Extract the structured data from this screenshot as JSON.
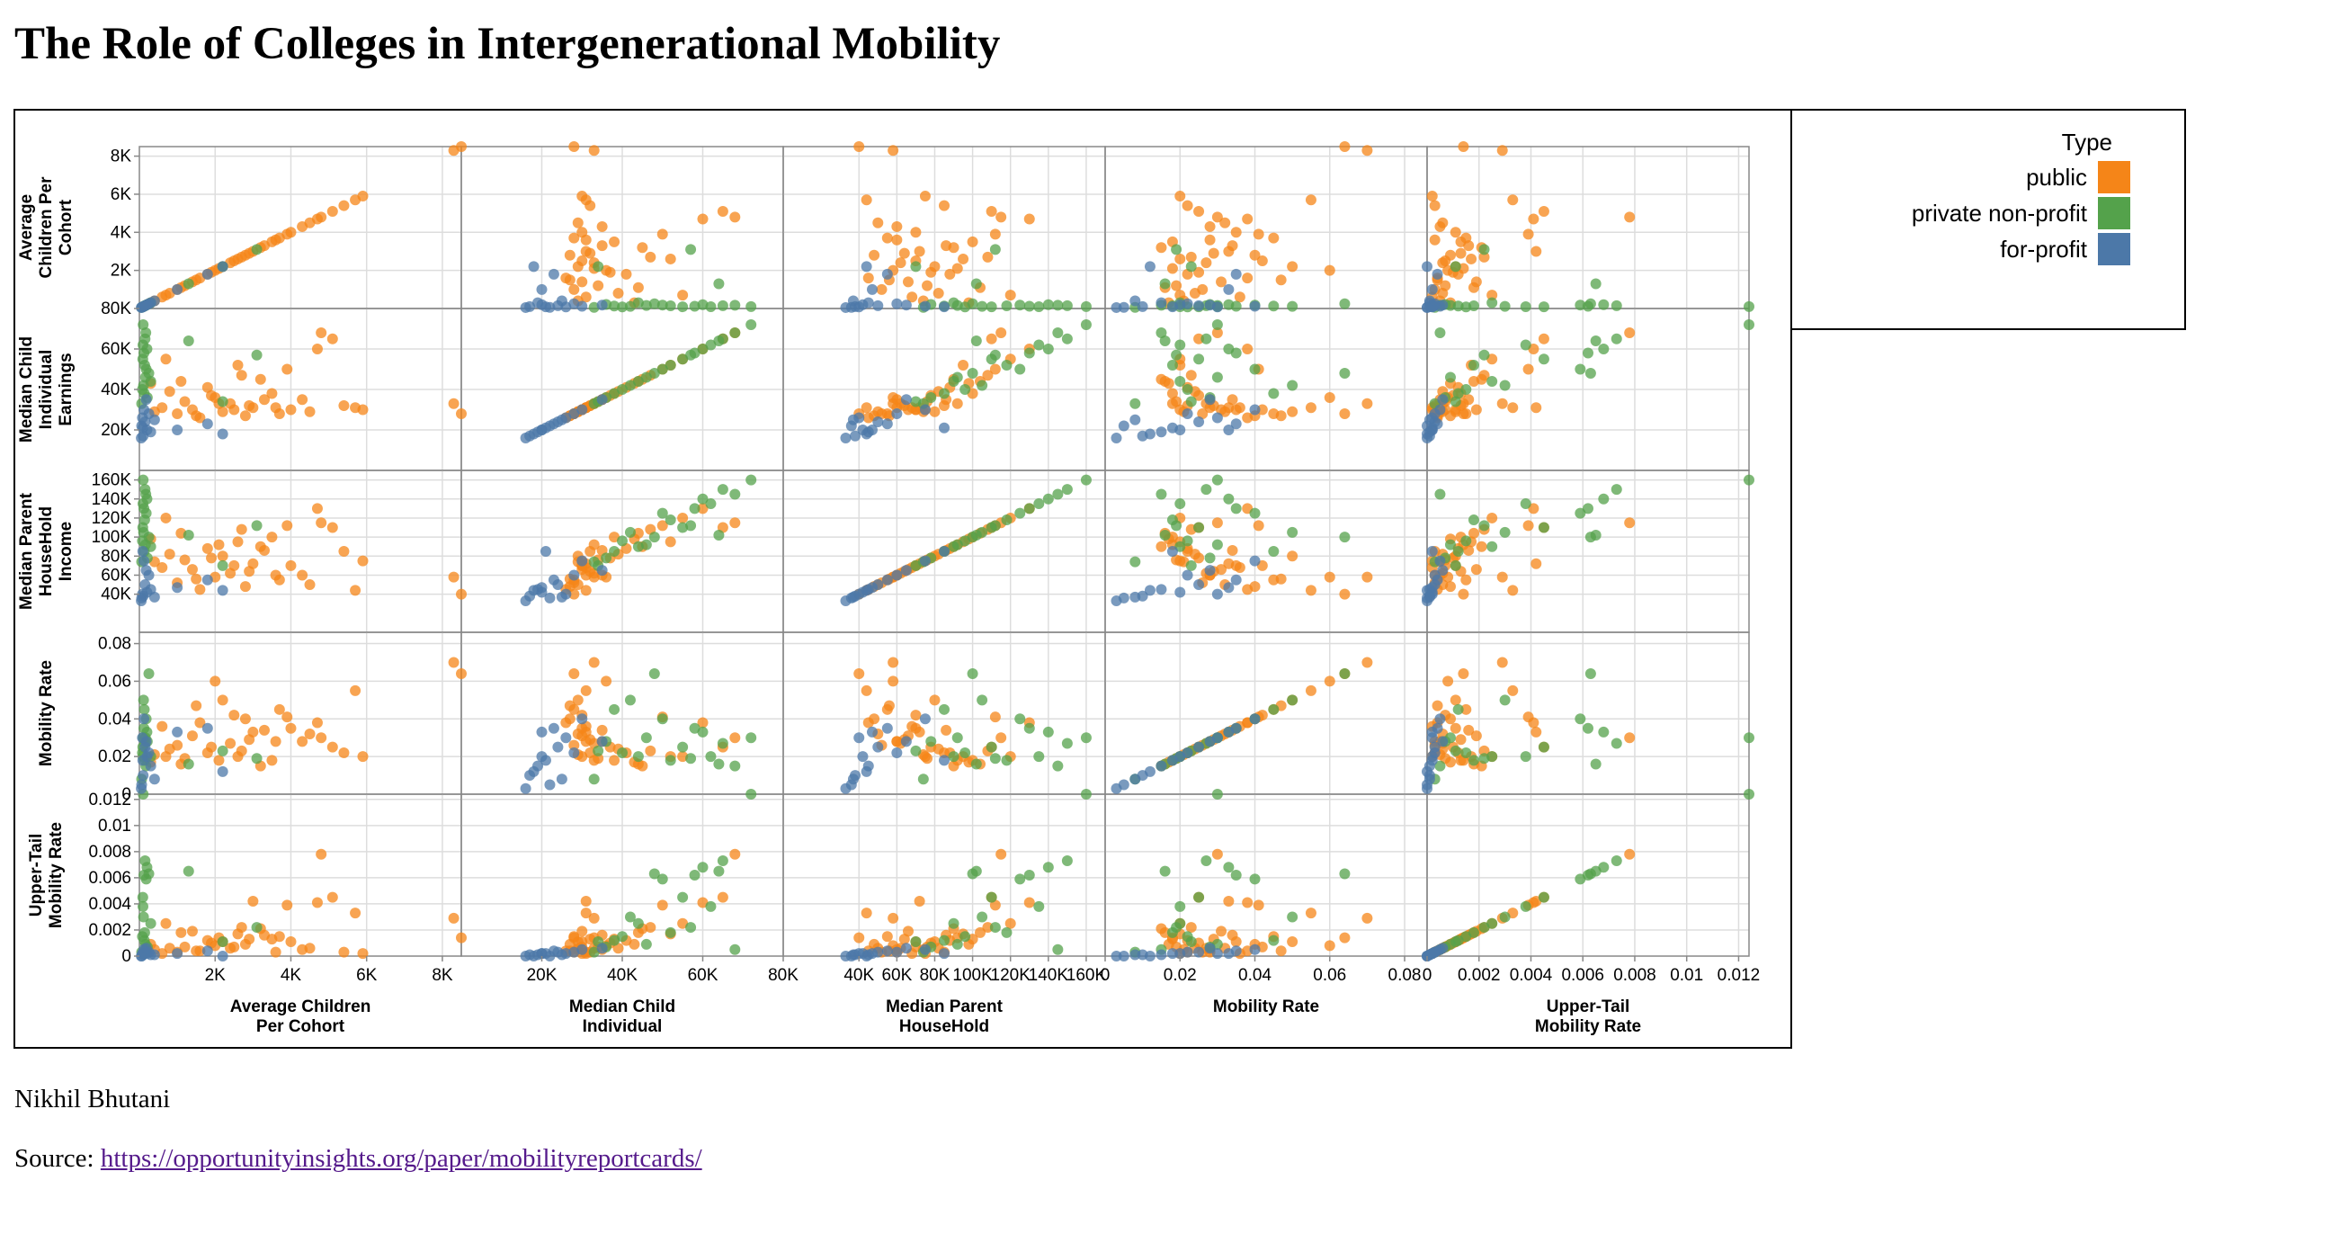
{
  "title": "The Role of Colleges in Intergenerational Mobility",
  "author": "Nikhil Bhutani",
  "source_label": "Source:",
  "source_url": "https://opportunityinsights.org/paper/mobilityreportcards/",
  "legend": {
    "title": "Type",
    "items": [
      {
        "label": "public",
        "color": "#f58518"
      },
      {
        "label": "private non-profit",
        "color": "#54a24b"
      },
      {
        "label": "for-profit",
        "color": "#4c78a8"
      }
    ]
  },
  "chart_data": {
    "type": "scatter",
    "subtype": "scatter-matrix",
    "grid": true,
    "legend_position": "right",
    "variables": [
      {
        "key": "count",
        "row_title": "Average Children Per Cohort",
        "col_title": "Average Children Per Cohort",
        "domain": [
          0,
          8500
        ],
        "ticks": [
          2000,
          4000,
          6000,
          8000
        ],
        "tick_labels": [
          "2K",
          "4K",
          "6K",
          "8K"
        ]
      },
      {
        "key": "k_median",
        "row_title": "Median Child Individual Earnings",
        "col_title": "Median Child Individual",
        "domain": [
          0,
          80000
        ],
        "ticks": [
          20000,
          40000,
          60000,
          80000
        ],
        "tick_labels": [
          "20K",
          "40K",
          "60K",
          "80K"
        ]
      },
      {
        "key": "par_median",
        "row_title": "Median Parent HouseHold Income",
        "col_title": "Median Parent HouseHold",
        "domain": [
          0,
          170000
        ],
        "ticks": [
          40000,
          60000,
          80000,
          100000,
          120000,
          140000,
          160000
        ],
        "tick_labels": [
          "40K",
          "60K",
          "80K",
          "100K",
          "120K",
          "140K",
          "160K"
        ]
      },
      {
        "key": "mr_kq5_pq1",
        "row_title": "Mobility Rate",
        "col_title": "Mobility Rate",
        "domain": [
          0,
          0.086
        ],
        "ticks": [
          0,
          0.02,
          0.04,
          0.06,
          0.08
        ],
        "tick_labels": [
          "0",
          "0.02",
          "0.04",
          "0.06",
          "0.08"
        ]
      },
      {
        "key": "mr_ktop1_pq1",
        "row_title": "Upper-Tail Mobility Rate",
        "col_title": "Upper-Tail Mobility Rate",
        "domain": [
          0,
          0.0124
        ],
        "ticks": [
          0,
          0.002,
          0.004,
          0.006,
          0.008,
          0.01,
          0.012
        ],
        "tick_labels": [
          "0",
          "0.002",
          "0.004",
          "0.006",
          "0.008",
          "0.01",
          "0.012"
        ]
      }
    ],
    "series": [
      {
        "name": "public",
        "color": "#f58518",
        "points": [
          [
            5900,
            30000,
            75000,
            0.02,
            0.0002
          ],
          [
            5400,
            32000,
            85000,
            0.022,
            0.0003
          ],
          [
            5100,
            65000,
            110000,
            0.025,
            0.0045
          ],
          [
            4800,
            68000,
            115000,
            0.03,
            0.0078
          ],
          [
            4300,
            35000,
            60000,
            0.028,
            0.0005
          ],
          [
            4000,
            30000,
            70000,
            0.035,
            0.0011
          ],
          [
            3700,
            28000,
            55000,
            0.045,
            0.0015
          ],
          [
            3500,
            38000,
            100000,
            0.018,
            0.0013
          ],
          [
            3200,
            45000,
            90000,
            0.015,
            0.0021
          ],
          [
            3000,
            31000,
            72000,
            0.033,
            0.0042
          ],
          [
            2800,
            27000,
            48000,
            0.04,
            0.0009
          ],
          [
            2600,
            52000,
            95000,
            0.02,
            0.0017
          ],
          [
            2400,
            33000,
            62000,
            0.027,
            0.0006
          ],
          [
            2200,
            29000,
            80000,
            0.05,
            0.0011
          ],
          [
            2000,
            36000,
            58000,
            0.06,
            0.0008
          ],
          [
            1800,
            41000,
            88000,
            0.022,
            0.0012
          ],
          [
            1600,
            26000,
            45000,
            0.038,
            0.0004
          ],
          [
            1400,
            30000,
            66000,
            0.031,
            0.0019
          ],
          [
            1200,
            34000,
            76000,
            0.019,
            0.0007
          ],
          [
            1000,
            28000,
            52000,
            0.026,
            0.0003
          ],
          [
            800,
            39000,
            82000,
            0.024,
            0.0006
          ],
          [
            600,
            31000,
            68000,
            0.036,
            0.0002
          ],
          [
            400,
            29000,
            74000,
            0.021,
            0.0005
          ],
          [
            300,
            43000,
            98000,
            0.017,
            0.0009
          ],
          [
            2900,
            32000,
            64000,
            0.029,
            0.0013
          ],
          [
            3300,
            35000,
            86000,
            0.034,
            0.0016
          ],
          [
            2500,
            30000,
            70000,
            0.042,
            0.0007
          ],
          [
            1900,
            37000,
            78000,
            0.025,
            0.001
          ],
          [
            1500,
            27000,
            56000,
            0.047,
            0.0004
          ],
          [
            2100,
            33000,
            92000,
            0.018,
            0.0014
          ],
          [
            3600,
            31000,
            60000,
            0.028,
            0.0003
          ],
          [
            4500,
            29000,
            50000,
            0.032,
            0.0006
          ],
          [
            1100,
            44000,
            104000,
            0.016,
            0.0018
          ],
          [
            700,
            55000,
            120000,
            0.02,
            0.0025
          ],
          [
            2700,
            47000,
            108000,
            0.023,
            0.0022
          ],
          [
            8500,
            28000,
            40000,
            0.064,
            0.0014
          ],
          [
            8300,
            33000,
            58000,
            0.07,
            0.0029
          ],
          [
            5700,
            31000,
            44000,
            0.055,
            0.0033
          ],
          [
            4700,
            60000,
            130000,
            0.038,
            0.0041
          ],
          [
            3900,
            50000,
            112000,
            0.041,
            0.0039
          ]
        ]
      },
      {
        "name": "private non-profit",
        "color": "#54a24b",
        "points": [
          [
            100,
            72000,
            160000,
            0.03,
            0.0124
          ],
          [
            150,
            65000,
            150000,
            0.027,
            0.0073
          ],
          [
            200,
            60000,
            140000,
            0.033,
            0.0068
          ],
          [
            120,
            58000,
            130000,
            0.035,
            0.0062
          ],
          [
            180,
            50000,
            125000,
            0.04,
            0.0059
          ],
          [
            90,
            55000,
            110000,
            0.025,
            0.0045
          ],
          [
            250,
            48000,
            100000,
            0.064,
            0.0063
          ],
          [
            300,
            44000,
            90000,
            0.02,
            0.0025
          ],
          [
            110,
            42000,
            105000,
            0.05,
            0.003
          ],
          [
            140,
            52000,
            118000,
            0.018,
            0.0018
          ],
          [
            80,
            40000,
            96000,
            0.022,
            0.0015
          ],
          [
            130,
            38000,
            85000,
            0.045,
            0.0012
          ],
          [
            160,
            46000,
            92000,
            0.03,
            0.0009
          ],
          [
            210,
            36000,
            78000,
            0.028,
            0.0007
          ],
          [
            95,
            62000,
            135000,
            0.02,
            0.0038
          ],
          [
            1300,
            64000,
            102000,
            0.016,
            0.0065
          ],
          [
            2200,
            34000,
            70000,
            0.023,
            0.0011
          ],
          [
            3100,
            57000,
            112000,
            0.019,
            0.0022
          ],
          [
            170,
            68000,
            145000,
            0.015,
            0.0005
          ],
          [
            60,
            33000,
            74000,
            0.008,
            0.0003
          ]
        ]
      },
      {
        "name": "for-profit",
        "color": "#4c78a8",
        "points": [
          [
            100,
            17000,
            38000,
            0.01,
            0.0001
          ],
          [
            200,
            20000,
            42000,
            0.02,
            0.0002
          ],
          [
            60,
            22000,
            36000,
            0.005,
            0.0
          ],
          [
            300,
            19000,
            45000,
            0.015,
            0.0001
          ],
          [
            150,
            24000,
            50000,
            0.025,
            0.0003
          ],
          [
            80,
            26000,
            40000,
            0.03,
            0.0002
          ],
          [
            2200,
            18000,
            44000,
            0.012,
            0.0
          ],
          [
            1800,
            23000,
            55000,
            0.035,
            0.0004
          ],
          [
            120,
            30000,
            75000,
            0.04,
            0.0005
          ],
          [
            90,
            21000,
            85000,
            0.018,
            0.0002
          ],
          [
            400,
            25000,
            37000,
            0.008,
            0.0001
          ],
          [
            250,
            28000,
            60000,
            0.022,
            0.0003
          ],
          [
            50,
            16000,
            33000,
            0.003,
            0.0
          ],
          [
            180,
            35000,
            65000,
            0.028,
            0.0006
          ],
          [
            1000,
            20000,
            47000,
            0.033,
            0.0002
          ]
        ]
      }
    ]
  }
}
